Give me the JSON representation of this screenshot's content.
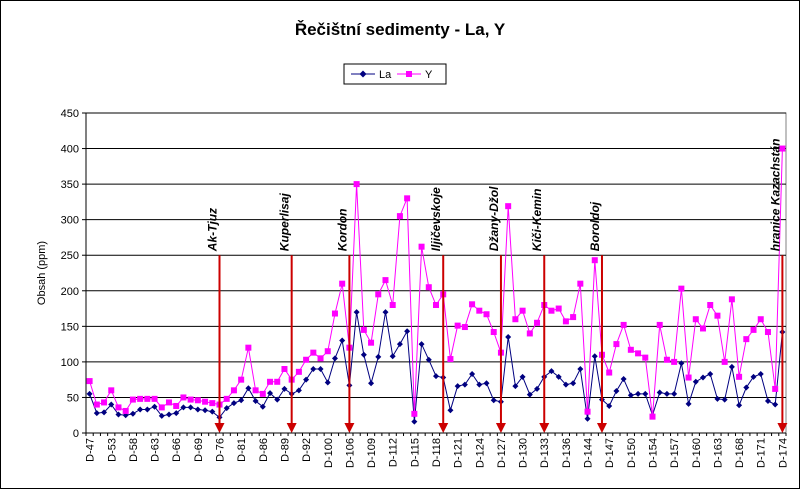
{
  "chart_data": {
    "type": "line",
    "title": "Řečištní sedimenty - La, Y",
    "xlabel": "",
    "ylabel": "Obsah (ppm)",
    "ylim": [
      0,
      450
    ],
    "yticks": [
      0,
      50,
      100,
      150,
      200,
      250,
      300,
      350,
      400,
      450
    ],
    "grid": true,
    "legend_position": "top-center",
    "x_tick_labels": [
      "D-47",
      "D-53",
      "D-58",
      "D-63",
      "D-66",
      "D-69",
      "D-76",
      "D-81",
      "D-86",
      "D-89",
      "D-92",
      "D-100",
      "D-106",
      "D-109",
      "D-112",
      "D-115",
      "D-118",
      "D-121",
      "D-124",
      "D-127",
      "D-130",
      "D-133",
      "D-136",
      "D-144",
      "D-147",
      "D-150",
      "D-154",
      "D-157",
      "D-160",
      "D-163",
      "D-168",
      "D-171",
      "D-174"
    ],
    "series": [
      {
        "name": "La",
        "color": "#000080",
        "marker": "diamond",
        "values": [
          55,
          28,
          29,
          40,
          26,
          25,
          27,
          33,
          33,
          37,
          24,
          26,
          28,
          36,
          36,
          33,
          32,
          30,
          22,
          35,
          42,
          46,
          63,
          45,
          37,
          56,
          47,
          62,
          55,
          60,
          75,
          90,
          90,
          71,
          105,
          130,
          67,
          170,
          110,
          70,
          107,
          170,
          108,
          125,
          143,
          16,
          125,
          103,
          80,
          78,
          32,
          66,
          68,
          83,
          68,
          70,
          46,
          44,
          135,
          66,
          79,
          54,
          62,
          79,
          87,
          79,
          68,
          70,
          90,
          20,
          108,
          47,
          38,
          59,
          76,
          53,
          55,
          55,
          25,
          57,
          55,
          55,
          98,
          41,
          72,
          78,
          83,
          48,
          47,
          93,
          39,
          64,
          79,
          83,
          45,
          40,
          142
        ]
      },
      {
        "name": "Y",
        "color": "#ff00ff",
        "marker": "square",
        "values": [
          73,
          40,
          43,
          60,
          36,
          31,
          47,
          48,
          48,
          48,
          36,
          43,
          38,
          50,
          47,
          46,
          44,
          42,
          40,
          48,
          60,
          75,
          120,
          60,
          55,
          72,
          72,
          90,
          75,
          86,
          103,
          113,
          105,
          115,
          168,
          210,
          120,
          350,
          145,
          127,
          195,
          215,
          180,
          305,
          330,
          27,
          262,
          205,
          180,
          195,
          104,
          151,
          149,
          181,
          172,
          167,
          142,
          113,
          319,
          160,
          172,
          140,
          155,
          180,
          172,
          175,
          157,
          163,
          210,
          30,
          243,
          110,
          85,
          125,
          152,
          117,
          112,
          106,
          23,
          152,
          103,
          100,
          203,
          78,
          160,
          147,
          180,
          165,
          100,
          188,
          79,
          132,
          145,
          160,
          142,
          62,
          400
        ]
      }
    ],
    "annotations": [
      "Ak-Tjuz",
      "Kuperlisaj",
      "Kordon",
      "Iljičevskoje",
      "Džany-Džol",
      "Kiči-Kemin",
      "Boroldoj",
      "hranice Kazachstán"
    ]
  }
}
